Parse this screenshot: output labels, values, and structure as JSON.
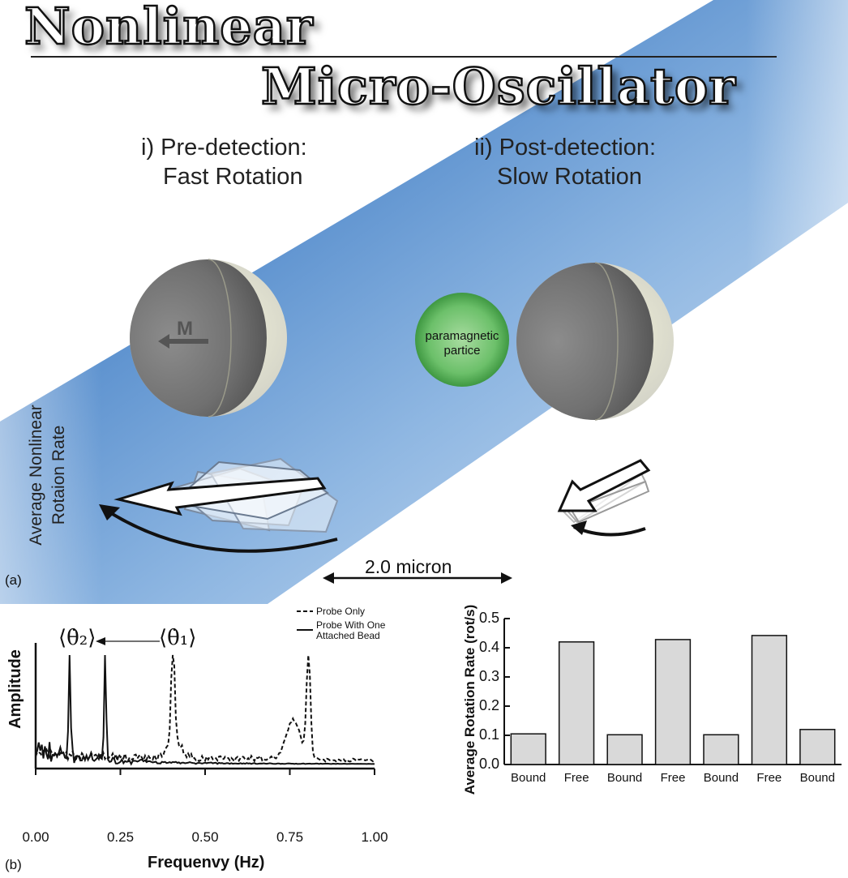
{
  "diagram": {
    "title_line1": "Nonlinear",
    "title_line2": "Micro-Oscillator",
    "panel_a_label": "(a)",
    "panel_b_label": "(b)",
    "stage1_line1": "i) Pre-detection:",
    "stage1_line2": "Fast Rotation",
    "stage2_line1": "ii) Post-detection:",
    "stage2_line2": "Slow Rotation",
    "moment_label": "M",
    "particle_line1": "paramagnetic",
    "particle_line2": "partice",
    "rate_label_line1": "Average Nonlinear",
    "rate_label_line2": "Rotaion Rate",
    "scale_bar": "2.0 micron",
    "colors": {
      "beam": "#3a74b8",
      "particle": "#3f9d3f",
      "sphere": "#d9d9cc"
    }
  },
  "spectrum": {
    "ylabel": "Amplitude",
    "xlabel": "Frequenvy (Hz)",
    "ticks": [
      "0.00",
      "0.25",
      "0.50",
      "0.75",
      "1.00"
    ],
    "theta2": "⟨θ̇₂⟩",
    "theta1": "⟨θ̇₁⟩",
    "legend_dashed": "Probe Only",
    "legend_solid_line1": "Probe With One",
    "legend_solid_line2": "Attached Bead"
  },
  "chart_data": {
    "type": "bar",
    "categories": [
      "Bound",
      "Free",
      "Bound",
      "Free",
      "Bound",
      "Free",
      "Bound"
    ],
    "values": [
      0.105,
      0.42,
      0.102,
      0.428,
      0.102,
      0.442,
      0.12
    ],
    "ylabel": "Average Rotation Rate (rot/s)",
    "ylim": [
      0,
      0.5
    ],
    "yticks": [
      "0.0",
      "0.1",
      "0.2",
      "0.3",
      "0.4",
      "0.5"
    ],
    "grid": false,
    "colors": {
      "bar": "#d9d9d9",
      "edge": "#111111"
    }
  }
}
